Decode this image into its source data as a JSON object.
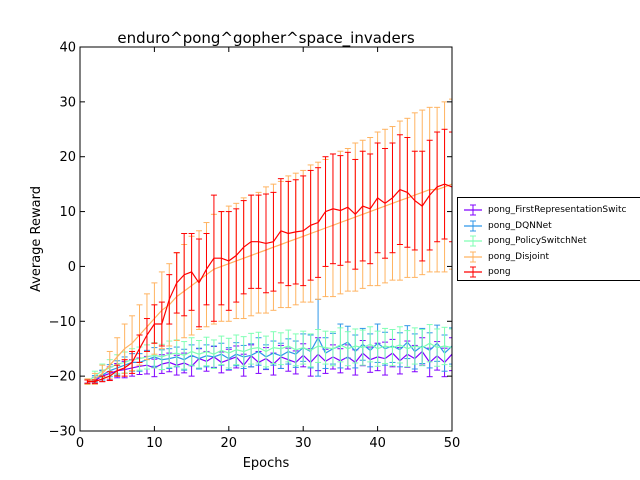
{
  "chart_data": {
    "type": "line",
    "title": "enduro^pong^gopher^space_invaders",
    "xlabel": "Epochs",
    "ylabel": "Average Reward",
    "xlim": [
      0,
      50
    ],
    "ylim": [
      -30,
      40
    ],
    "xticks": [
      "0",
      "10",
      "20",
      "30",
      "40",
      "50"
    ],
    "yticks": [
      "−30",
      "−20",
      "−10",
      "0",
      "10",
      "20",
      "30",
      "40"
    ],
    "grid": false,
    "legend_position": "outside-right",
    "error_bars": true,
    "series": [
      {
        "name": "pong_FirstRepresentationSwitc",
        "color": "#8000ff",
        "x": [
          1,
          2,
          3,
          4,
          5,
          6,
          7,
          8,
          9,
          10,
          11,
          12,
          13,
          14,
          15,
          16,
          17,
          18,
          19,
          20,
          21,
          22,
          23,
          24,
          25,
          26,
          27,
          28,
          29,
          30,
          31,
          32,
          33,
          34,
          35,
          36,
          37,
          38,
          39,
          40,
          41,
          42,
          43,
          44,
          45,
          46,
          47,
          48,
          49,
          50
        ],
        "values": [
          -21,
          -20.8,
          -20,
          -19.5,
          -19,
          -18.8,
          -18.5,
          -18.2,
          -18,
          -18.5,
          -17.8,
          -17.5,
          -18,
          -17.6,
          -18.2,
          -16.8,
          -17.3,
          -16.5,
          -17.5,
          -17,
          -16.5,
          -18,
          -16.3,
          -17.5,
          -16.8,
          -17.8,
          -16.5,
          -17,
          -17.5,
          -16.2,
          -17.5,
          -16,
          -17.3,
          -16.5,
          -17.2,
          -16.5,
          -17.5,
          -15.8,
          -17,
          -16.5,
          -16.8,
          -15.8,
          -17.2,
          -16,
          -16.8,
          -15.5,
          -17.5,
          -16.3,
          -17.5,
          -16
        ],
        "errors": [
          0.3,
          0.6,
          1,
          1.2,
          1.3,
          1.5,
          1.5,
          1.5,
          1.6,
          1.6,
          1.7,
          1.7,
          1.8,
          1.8,
          1.8,
          1.8,
          1.8,
          1.9,
          1.9,
          1.9,
          2,
          2,
          2,
          2,
          2,
          2,
          2.1,
          2.1,
          2.1,
          2.1,
          2.5,
          3,
          2.2,
          2.2,
          2.2,
          2.2,
          2.3,
          2.3,
          2.3,
          2.5,
          3,
          2.5,
          2.4,
          2.4,
          2.4,
          2.5,
          2.6,
          2.6,
          2.6,
          3
        ]
      },
      {
        "name": "pong_DQNNet",
        "color": "#2f97e9",
        "x": [
          1,
          2,
          3,
          4,
          5,
          6,
          7,
          8,
          9,
          10,
          11,
          12,
          13,
          14,
          15,
          16,
          17,
          18,
          19,
          20,
          21,
          22,
          23,
          24,
          25,
          26,
          27,
          28,
          29,
          30,
          31,
          32,
          33,
          34,
          35,
          36,
          37,
          38,
          39,
          40,
          41,
          42,
          43,
          44,
          45,
          46,
          47,
          48,
          49,
          50
        ],
        "values": [
          -21,
          -20.5,
          -19.8,
          -19,
          -18.5,
          -18,
          -17.5,
          -17.5,
          -17,
          -16.5,
          -17,
          -16.8,
          -16.5,
          -17,
          -16.2,
          -16.8,
          -16.3,
          -16.5,
          -16,
          -16.8,
          -16,
          -16.5,
          -16.2,
          -15.5,
          -16.5,
          -15.8,
          -16.3,
          -15.5,
          -16,
          -14.8,
          -15.5,
          -13,
          -15.8,
          -15,
          -14.5,
          -13.8,
          -15.5,
          -14.2,
          -15.3,
          -14,
          -15,
          -14.5,
          -15.2,
          -13.8,
          -15.5,
          -14.5,
          -15.3,
          -14,
          -15.8,
          -14.5
        ],
        "errors": [
          0.3,
          0.6,
          0.9,
          1.1,
          1.3,
          1.5,
          1.6,
          1.6,
          1.7,
          1.7,
          1.8,
          1.8,
          1.8,
          1.9,
          1.9,
          1.9,
          2,
          2,
          2,
          2,
          2.1,
          2.1,
          2.1,
          2.5,
          2.2,
          2.2,
          2.3,
          2.3,
          2.4,
          2.5,
          3,
          7,
          2.8,
          2.8,
          4,
          2.9,
          3,
          2.9,
          3,
          3.5,
          3,
          3,
          3.1,
          3,
          3.2,
          3.2,
          3.2,
          3.3,
          3.3,
          3.3
        ]
      },
      {
        "name": "pong_PolicySwitchNet",
        "color": "#80ffb4",
        "x": [
          1,
          2,
          3,
          4,
          5,
          6,
          7,
          8,
          9,
          10,
          11,
          12,
          13,
          14,
          15,
          16,
          17,
          18,
          19,
          20,
          21,
          22,
          23,
          24,
          25,
          26,
          27,
          28,
          29,
          30,
          31,
          32,
          33,
          34,
          35,
          36,
          37,
          38,
          39,
          40,
          41,
          42,
          43,
          44,
          45,
          46,
          47,
          48,
          49,
          50
        ],
        "values": [
          -21,
          -20,
          -19,
          -18.5,
          -17.8,
          -17.5,
          -17,
          -16.8,
          -16.5,
          -16.2,
          -16.5,
          -16,
          -15.8,
          -16.2,
          -15.5,
          -16,
          -15.5,
          -16,
          -15.3,
          -15.8,
          -15.2,
          -15.5,
          -15,
          -14.8,
          -15.5,
          -14.8,
          -15,
          -14.5,
          -15.2,
          -14.8,
          -15.3,
          -14.5,
          -14.8,
          -15,
          -14.3,
          -15,
          -14.5,
          -14.8,
          -14.2,
          -15,
          -14.5,
          -14.8,
          -14.3,
          -15,
          -14.5,
          -14.8,
          -14,
          -14.8,
          -14.5,
          -14.8
        ],
        "errors": [
          0.5,
          0.9,
          1.2,
          1.5,
          1.7,
          1.9,
          2,
          2.1,
          2.2,
          2.3,
          2.3,
          2.4,
          2.4,
          2.5,
          2.5,
          2.5,
          2.6,
          2.6,
          2.6,
          2.7,
          2.7,
          2.7,
          2.8,
          2.8,
          2.8,
          2.9,
          2.9,
          2.9,
          2.9,
          3,
          3,
          3,
          3,
          3.1,
          3.1,
          3.1,
          3.1,
          3.2,
          3.2,
          3.2,
          3.2,
          3.3,
          3.3,
          3.3,
          3.3,
          3.3,
          3.4,
          3.4,
          3.4,
          3.4
        ]
      },
      {
        "name": "pong_Disjoint",
        "color": "#ffb360",
        "x": [
          1,
          2,
          3,
          4,
          5,
          6,
          7,
          8,
          9,
          10,
          11,
          12,
          13,
          14,
          15,
          16,
          17,
          18,
          19,
          20,
          21,
          22,
          23,
          24,
          25,
          26,
          27,
          28,
          29,
          30,
          31,
          32,
          33,
          34,
          35,
          36,
          37,
          38,
          39,
          40,
          41,
          42,
          43,
          44,
          45,
          46,
          47,
          48,
          49,
          50
        ],
        "values": [
          -21,
          -20.5,
          -19.5,
          -18,
          -16.5,
          -15,
          -14,
          -12.5,
          -11,
          -9.5,
          -8,
          -7,
          -5.5,
          -4.5,
          -3.5,
          -2.5,
          -1.5,
          -0.5,
          0,
          0.5,
          1,
          1.5,
          2,
          2.5,
          3,
          3.5,
          4,
          4.5,
          5,
          5.5,
          6,
          6.5,
          7,
          7.5,
          8,
          8.5,
          9,
          9.5,
          10,
          10.5,
          11,
          11.5,
          12,
          12.5,
          13,
          13.5,
          14,
          14,
          14.5,
          15
        ],
        "errors": [
          0.5,
          1,
          1.5,
          2.5,
          3.5,
          4.5,
          5,
          5.5,
          6,
          6.5,
          7,
          7.5,
          8,
          8.5,
          9,
          9,
          9.5,
          10,
          10,
          10.5,
          10.5,
          11,
          11,
          11,
          11.5,
          11.5,
          11.5,
          12,
          12,
          12,
          12.5,
          12.5,
          12.5,
          13,
          13,
          13,
          13.5,
          13.5,
          13.5,
          14,
          14,
          14,
          14.5,
          14.5,
          15,
          15,
          15,
          15,
          15.5,
          15.5
        ]
      },
      {
        "name": "pong",
        "color": "#ff0000",
        "x": [
          1,
          2,
          3,
          4,
          5,
          6,
          7,
          8,
          9,
          10,
          11,
          12,
          13,
          14,
          15,
          16,
          17,
          18,
          19,
          20,
          21,
          22,
          23,
          24,
          25,
          26,
          27,
          28,
          29,
          30,
          31,
          32,
          33,
          34,
          35,
          36,
          37,
          38,
          39,
          40,
          41,
          42,
          43,
          44,
          45,
          46,
          47,
          48,
          49,
          50
        ],
        "values": [
          -21,
          -21,
          -20.5,
          -20,
          -19,
          -18.5,
          -17.5,
          -15,
          -12.5,
          -10.5,
          -10.5,
          -6,
          -3,
          -1.5,
          -1,
          -3,
          -0.5,
          1.5,
          1.5,
          1,
          2,
          3.5,
          4.5,
          4.5,
          4.2,
          4.5,
          6.5,
          6,
          6.3,
          6.5,
          7.5,
          8,
          10,
          10.5,
          10.2,
          10.8,
          9.5,
          11,
          10.5,
          12.5,
          11.5,
          12.5,
          14,
          13.5,
          12,
          11,
          13,
          14.5,
          15,
          14.5
        ],
        "errors": [
          0.3,
          0.3,
          0.5,
          0.8,
          1,
          1.5,
          2,
          2.5,
          3,
          3.5,
          4,
          4.5,
          5.5,
          7.5,
          7,
          8,
          6.5,
          11.5,
          8.5,
          9,
          8.5,
          8.5,
          8.5,
          8.5,
          9,
          9,
          9.5,
          9.5,
          9.5,
          10,
          10,
          10,
          10,
          10,
          10,
          10,
          10,
          10,
          10,
          10,
          10,
          10,
          10,
          10,
          9,
          10,
          10,
          10,
          10,
          10
        ]
      }
    ]
  }
}
